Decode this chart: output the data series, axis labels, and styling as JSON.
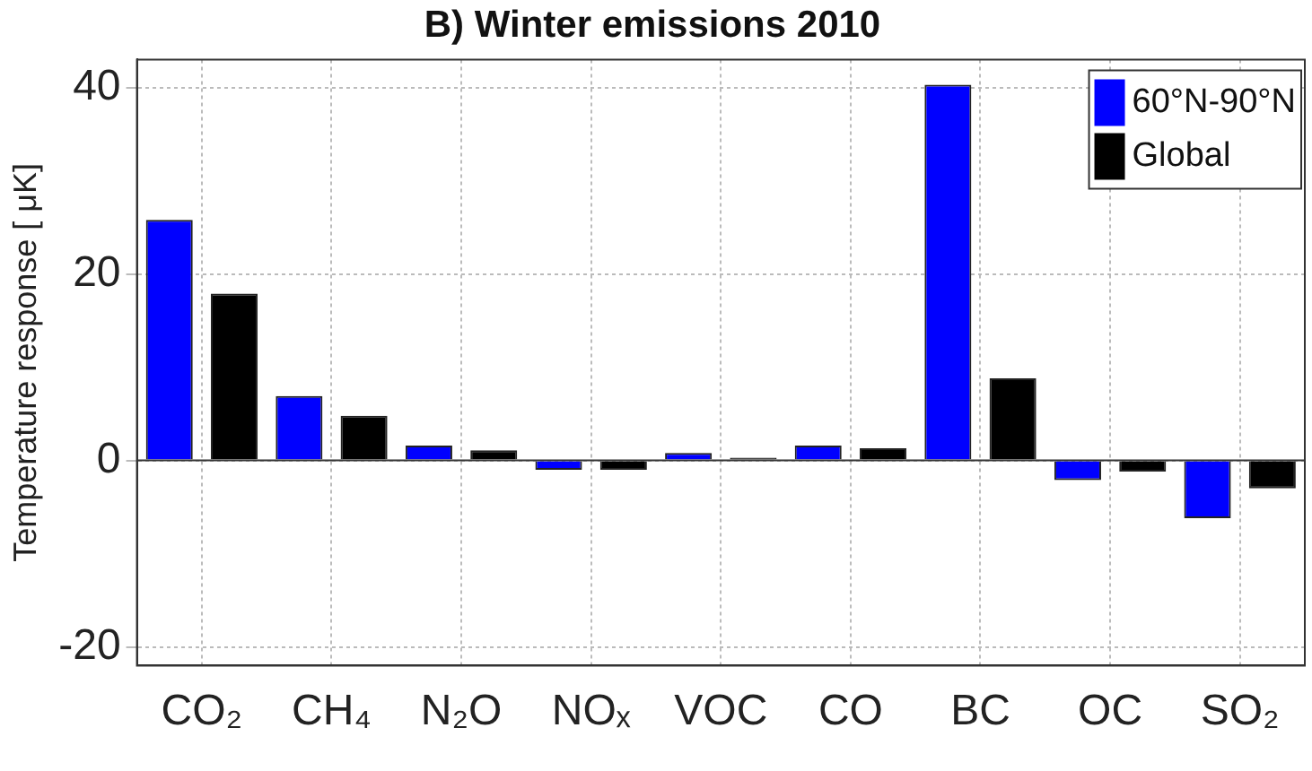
{
  "chart_data": {
    "type": "bar",
    "title": "B) Winter emissions 2010",
    "ylabel": "Temperature response [ μK]",
    "categories": [
      "CO₂",
      "CH₄",
      "N₂O",
      "NOₓ",
      "VOC",
      "CO",
      "BC",
      "OC",
      "SO₂"
    ],
    "series": [
      {
        "name": "60°N-90°N",
        "color": "#0000ff",
        "values": [
          25.8,
          6.9,
          1.6,
          -1.0,
          0.8,
          1.6,
          40.3,
          -2.1,
          -6.2
        ]
      },
      {
        "name": "Global",
        "color": "#000000",
        "values": [
          17.9,
          4.8,
          1.1,
          -1.0,
          0.3,
          1.3,
          8.8,
          -1.2,
          -3.0
        ]
      }
    ],
    "ylim": [
      -22,
      43
    ],
    "yticks": [
      -20,
      0,
      20,
      40
    ],
    "grid": true,
    "legend": "top right"
  }
}
